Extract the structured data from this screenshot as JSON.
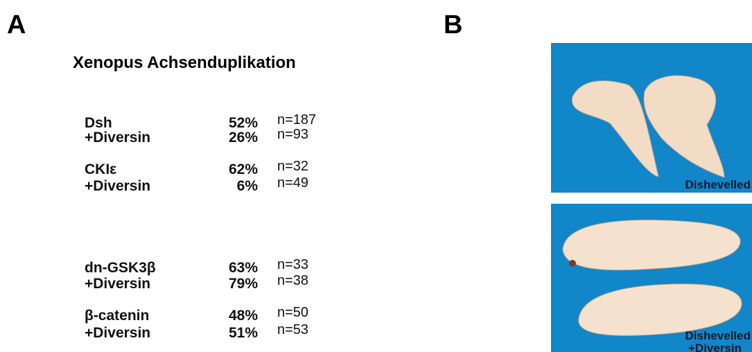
{
  "panels": {
    "a_label": "A",
    "b_label": "B"
  },
  "table": {
    "title": "Xenopus Achsenduplikation",
    "rows": [
      {
        "label": "Dsh",
        "percent": "52%",
        "n": "n=187"
      },
      {
        "label": "+Diversin",
        "percent": "26%",
        "n": "n=93"
      },
      {
        "label": "CKIε",
        "percent": "62%",
        "n": "n=32"
      },
      {
        "label": "+Diversin",
        "percent": "6%",
        "n": "n=49"
      },
      {
        "label": "dn-GSK3β",
        "percent": "63%",
        "n": "n=33"
      },
      {
        "label": "+Diversin",
        "percent": "79%",
        "n": "n=38"
      },
      {
        "label": "β-catenin",
        "percent": "48%",
        "n": "n=50"
      },
      {
        "label": "+Diversin",
        "percent": "51%",
        "n": "n=53"
      }
    ]
  },
  "images": [
    {
      "caption": [
        "Dishevelled"
      ]
    },
    {
      "caption": [
        "Dishevelled",
        "+Diversin"
      ]
    }
  ]
}
